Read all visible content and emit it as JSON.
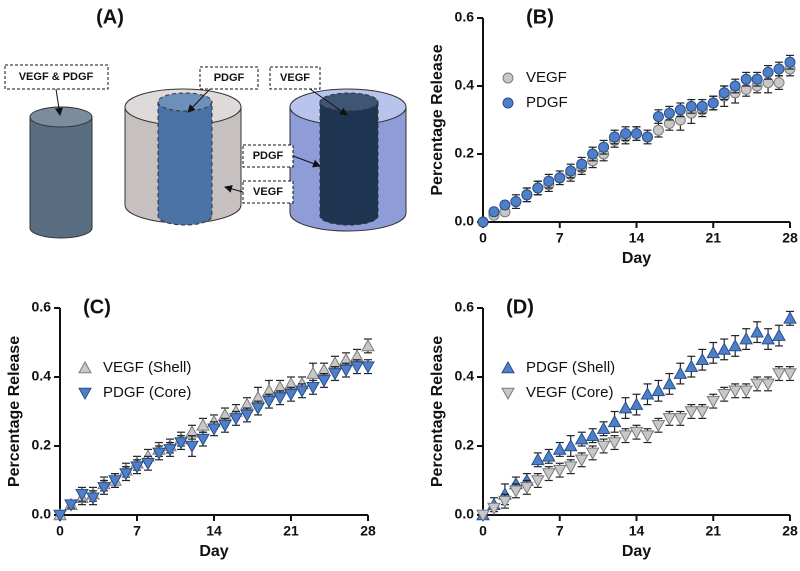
{
  "diagram": {
    "label": "(A)",
    "labels": [
      "VEGF & PDGF",
      "PDGF",
      "VEGF",
      "PDGF",
      "VEGF"
    ]
  },
  "chart_data": [
    {
      "type": "scatter",
      "label": "(B)",
      "xlabel": "Day",
      "ylabel": "Percentage Release",
      "legend": "upper left",
      "x": [
        0,
        1,
        2,
        3,
        4,
        5,
        6,
        7,
        8,
        9,
        10,
        11,
        12,
        13,
        14,
        15,
        16,
        17,
        18,
        19,
        20,
        21,
        22,
        23,
        24,
        25,
        26,
        27,
        28
      ],
      "xlim": [
        0,
        28
      ],
      "xticks": [
        0,
        7,
        14,
        21,
        28
      ],
      "ylim": [
        0,
        0.6
      ],
      "yticks": [
        {
          "value": 0,
          "label": "0.0"
        },
        0.2,
        0.4,
        0.6
      ],
      "series": [
        {
          "name": "VEGF",
          "color": "#c8c8c8",
          "marker": "circle",
          "values": [
            0,
            0.02,
            0.03,
            0.06,
            0.08,
            0.1,
            0.11,
            0.13,
            0.14,
            0.16,
            0.18,
            0.2,
            0.24,
            0.25,
            0.26,
            0.25,
            0.27,
            0.29,
            0.3,
            0.32,
            0.33,
            0.35,
            0.37,
            0.38,
            0.39,
            0.4,
            0.41,
            0.41,
            0.45
          ],
          "errors": [
            0,
            0.01,
            0.01,
            0.01,
            0.02,
            0.02,
            0.02,
            0.01,
            0.02,
            0.02,
            0.02,
            0.02,
            0.02,
            0.02,
            0.02,
            0.01,
            0.02,
            0.02,
            0.03,
            0.03,
            0.02,
            0.02,
            0.03,
            0.03,
            0.02,
            0.02,
            0.03,
            0.02,
            0.02
          ]
        },
        {
          "name": "PDGF",
          "color": "#4f7fc8",
          "marker": "circle",
          "values": [
            0,
            0.03,
            0.05,
            0.06,
            0.08,
            0.1,
            0.12,
            0.13,
            0.15,
            0.17,
            0.2,
            0.22,
            0.25,
            0.26,
            0.26,
            0.25,
            0.31,
            0.32,
            0.33,
            0.34,
            0.34,
            0.35,
            0.38,
            0.4,
            0.42,
            0.42,
            0.44,
            0.45,
            0.47
          ],
          "errors": [
            0,
            0.01,
            0.01,
            0.02,
            0.02,
            0.02,
            0.02,
            0.02,
            0.02,
            0.02,
            0.02,
            0.02,
            0.02,
            0.02,
            0.02,
            0.02,
            0.02,
            0.02,
            0.02,
            0.02,
            0.02,
            0.02,
            0.02,
            0.02,
            0.02,
            0.02,
            0.02,
            0.02,
            0.02
          ]
        }
      ]
    },
    {
      "type": "scatter",
      "label": "(C)",
      "xlabel": "Day",
      "ylabel": "Percentage Release",
      "legend": "upper left",
      "x": [
        0,
        1,
        2,
        3,
        4,
        5,
        6,
        7,
        8,
        9,
        10,
        11,
        12,
        13,
        14,
        15,
        16,
        17,
        18,
        19,
        20,
        21,
        22,
        23,
        24,
        25,
        26,
        27,
        28
      ],
      "xlim": [
        0,
        28
      ],
      "xticks": [
        0,
        7,
        14,
        21,
        28
      ],
      "ylim": [
        0,
        0.6
      ],
      "yticks": [
        {
          "value": 0,
          "label": "0.0"
        },
        0.2,
        0.4,
        0.6
      ],
      "series": [
        {
          "name": "VEGF (Shell)",
          "color": "#c8c8c8",
          "marker": "triangle-up",
          "values": [
            0,
            0.03,
            0.05,
            0.06,
            0.09,
            0.1,
            0.13,
            0.15,
            0.17,
            0.19,
            0.2,
            0.22,
            0.24,
            0.26,
            0.27,
            0.29,
            0.3,
            0.32,
            0.34,
            0.36,
            0.37,
            0.38,
            0.38,
            0.41,
            0.42,
            0.44,
            0.45,
            0.46,
            0.49
          ],
          "errors": [
            0,
            0.01,
            0.02,
            0.02,
            0.02,
            0.02,
            0.02,
            0.02,
            0.02,
            0.02,
            0.02,
            0.02,
            0.02,
            0.02,
            0.02,
            0.02,
            0.02,
            0.02,
            0.03,
            0.03,
            0.02,
            0.02,
            0.02,
            0.03,
            0.02,
            0.02,
            0.02,
            0.02,
            0.02
          ]
        },
        {
          "name": "PDGF (Core)",
          "color": "#4f7fc8",
          "marker": "triangle-down",
          "values": [
            0,
            0.03,
            0.06,
            0.05,
            0.08,
            0.1,
            0.12,
            0.14,
            0.15,
            0.18,
            0.19,
            0.21,
            0.2,
            0.22,
            0.25,
            0.26,
            0.28,
            0.29,
            0.31,
            0.33,
            0.34,
            0.35,
            0.36,
            0.37,
            0.39,
            0.41,
            0.42,
            0.43,
            0.43
          ],
          "errors": [
            0,
            0.01,
            0.02,
            0.02,
            0.02,
            0.02,
            0.02,
            0.02,
            0.02,
            0.02,
            0.02,
            0.02,
            0.03,
            0.02,
            0.02,
            0.02,
            0.02,
            0.02,
            0.02,
            0.02,
            0.02,
            0.02,
            0.02,
            0.02,
            0.02,
            0.02,
            0.02,
            0.02,
            0.02
          ]
        }
      ]
    },
    {
      "type": "scatter",
      "label": "(D)",
      "xlabel": "Day",
      "ylabel": "Percentage Release",
      "legend": "upper left",
      "x": [
        0,
        1,
        2,
        3,
        4,
        5,
        6,
        7,
        8,
        9,
        10,
        11,
        12,
        13,
        14,
        15,
        16,
        17,
        18,
        19,
        20,
        21,
        22,
        23,
        24,
        25,
        26,
        27,
        28
      ],
      "xlim": [
        0,
        28
      ],
      "xticks": [
        0,
        7,
        14,
        21,
        28
      ],
      "ylim": [
        0,
        0.6
      ],
      "yticks": [
        {
          "value": 0,
          "label": "0.0"
        },
        0.2,
        0.4,
        0.6
      ],
      "series": [
        {
          "name": "PDGF (Shell)",
          "color": "#4f7fc8",
          "marker": "triangle-up",
          "values": [
            0,
            0.03,
            0.06,
            0.09,
            0.1,
            0.16,
            0.17,
            0.19,
            0.2,
            0.22,
            0.23,
            0.25,
            0.27,
            0.31,
            0.32,
            0.35,
            0.36,
            0.38,
            0.41,
            0.43,
            0.45,
            0.47,
            0.48,
            0.49,
            0.51,
            0.53,
            0.51,
            0.52,
            0.57
          ],
          "errors": [
            0,
            0.02,
            0.03,
            0.02,
            0.02,
            0.02,
            0.02,
            0.02,
            0.03,
            0.02,
            0.02,
            0.02,
            0.03,
            0.03,
            0.03,
            0.03,
            0.03,
            0.03,
            0.03,
            0.03,
            0.03,
            0.03,
            0.03,
            0.03,
            0.03,
            0.03,
            0.03,
            0.03,
            0.02
          ]
        },
        {
          "name": "VEGF (Core)",
          "color": "#c8c8c8",
          "marker": "triangle-down",
          "values": [
            0,
            0.02,
            0.04,
            0.07,
            0.08,
            0.1,
            0.12,
            0.13,
            0.14,
            0.16,
            0.18,
            0.2,
            0.21,
            0.23,
            0.24,
            0.23,
            0.26,
            0.28,
            0.28,
            0.3,
            0.3,
            0.33,
            0.35,
            0.36,
            0.36,
            0.38,
            0.38,
            0.41,
            0.41
          ],
          "errors": [
            0,
            0.01,
            0.02,
            0.02,
            0.02,
            0.02,
            0.02,
            0.02,
            0.02,
            0.02,
            0.02,
            0.02,
            0.02,
            0.02,
            0.02,
            0.02,
            0.02,
            0.02,
            0.02,
            0.02,
            0.02,
            0.02,
            0.02,
            0.02,
            0.02,
            0.02,
            0.02,
            0.02,
            0.02
          ]
        }
      ]
    }
  ]
}
